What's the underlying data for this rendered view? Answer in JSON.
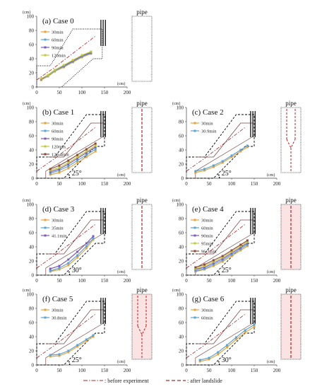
{
  "figure": {
    "footer": {
      "before_label": ": before experiment",
      "after_label": ": after landslide"
    }
  },
  "colors": {
    "dashed_black": "#000000",
    "dot_black": "#111111",
    "red_dash": "#a42a2a",
    "slope_outline": "#7a4848",
    "legend_colors": [
      "#e8a23c",
      "#5ba3d4",
      "#7c5bb5",
      "#c0c93a",
      "#8a4a3a"
    ],
    "pipe_fill": "#fbe3e3",
    "pipe_hole": "#b22222"
  },
  "chart_data": [
    {
      "type": "line",
      "title": "(a) Case 0",
      "pipe_label": "pipe",
      "unit_label": "(cm)",
      "xlim": [
        0,
        200
      ],
      "ylim": [
        0,
        100
      ],
      "x_ticks": [
        0,
        50,
        100,
        150,
        200
      ],
      "y_ticks": [
        0,
        20,
        40,
        60,
        80,
        100
      ],
      "angle_label": "",
      "series": [
        {
          "name": "30min",
          "x": [
            10,
            25,
            40,
            60,
            80,
            100,
            120
          ],
          "y": [
            10,
            15,
            22,
            28,
            35,
            42,
            47
          ]
        },
        {
          "name": "60min",
          "x": [
            10,
            25,
            40,
            60,
            80,
            100,
            120
          ],
          "y": [
            11,
            16,
            23,
            29,
            36,
            43,
            48
          ]
        },
        {
          "name": "90min",
          "x": [
            10,
            25,
            40,
            60,
            80,
            100,
            120
          ],
          "y": [
            11,
            17,
            24,
            30,
            37,
            44,
            49
          ]
        },
        {
          "name": "120min",
          "x": [
            10,
            25,
            40,
            60,
            80,
            100,
            120
          ],
          "y": [
            12,
            17,
            24,
            31,
            38,
            45,
            50
          ]
        }
      ]
    },
    {
      "type": "line",
      "title": "(b) Case 1",
      "pipe_label": "pipe",
      "unit_label": "(cm)",
      "xlim": [
        0,
        200
      ],
      "ylim": [
        0,
        100
      ],
      "x_ticks": [
        0,
        50,
        100,
        150,
        200
      ],
      "y_ticks": [
        0,
        20,
        40,
        60,
        80,
        100
      ],
      "angle_label": "25°",
      "series": [
        {
          "name": "30min",
          "x": [
            30,
            50,
            70,
            90,
            110,
            130
          ],
          "y": [
            5,
            8,
            14,
            22,
            30,
            38
          ]
        },
        {
          "name": "60min",
          "x": [
            30,
            50,
            70,
            90,
            110,
            130
          ],
          "y": [
            7,
            11,
            17,
            25,
            33,
            41
          ]
        },
        {
          "name": "90min",
          "x": [
            30,
            50,
            70,
            90,
            110,
            130
          ],
          "y": [
            9,
            13,
            20,
            28,
            36,
            44
          ]
        },
        {
          "name": "120min",
          "x": [
            30,
            50,
            70,
            90,
            110,
            130
          ],
          "y": [
            11,
            15,
            22,
            30,
            38,
            46
          ]
        },
        {
          "name": "120.4min",
          "x": [
            30,
            50,
            70,
            90,
            110,
            130
          ],
          "y": [
            13,
            18,
            25,
            33,
            41,
            49
          ]
        }
      ]
    },
    {
      "type": "line",
      "title": "(c) Case 2",
      "pipe_label": "pipe",
      "unit_label": "(cm)",
      "xlim": [
        0,
        200
      ],
      "ylim": [
        0,
        100
      ],
      "x_ticks": [
        0,
        50,
        100,
        150,
        200
      ],
      "y_ticks": [
        0,
        20,
        40,
        60,
        80,
        100
      ],
      "angle_label": "25°",
      "series": [
        {
          "name": "30min",
          "x": [
            20,
            40,
            60,
            80,
            100,
            120,
            135
          ],
          "y": [
            8,
            11,
            16,
            22,
            30,
            38,
            44
          ]
        },
        {
          "name": "30.9min",
          "x": [
            20,
            40,
            60,
            80,
            100,
            120,
            135
          ],
          "y": [
            10,
            13,
            18,
            24,
            32,
            40,
            46
          ]
        }
      ]
    },
    {
      "type": "line",
      "title": "(d) Case 3",
      "pipe_label": "pipe",
      "unit_label": "(cm)",
      "xlim": [
        0,
        200
      ],
      "ylim": [
        0,
        100
      ],
      "x_ticks": [
        0,
        50,
        100,
        150,
        200
      ],
      "y_ticks": [
        0,
        20,
        40,
        60,
        80,
        100
      ],
      "angle_label": "30°",
      "series": [
        {
          "name": "30min",
          "x": [
            30,
            50,
            70,
            90,
            110,
            125
          ],
          "y": [
            5,
            8,
            14,
            25,
            38,
            50
          ]
        },
        {
          "name": "35min",
          "x": [
            30,
            50,
            70,
            90,
            110,
            125
          ],
          "y": [
            6,
            10,
            17,
            28,
            41,
            52
          ]
        },
        {
          "name": "41.1min",
          "x": [
            30,
            50,
            70,
            90,
            110,
            125
          ],
          "y": [
            9,
            13,
            22,
            33,
            45,
            55
          ]
        }
      ]
    },
    {
      "type": "line",
      "title": "(e) Case 4",
      "pipe_label": "pipe",
      "unit_label": "(cm)",
      "xlim": [
        0,
        200
      ],
      "ylim": [
        0,
        100
      ],
      "x_ticks": [
        0,
        50,
        100,
        150,
        200
      ],
      "y_ticks": [
        0,
        20,
        40,
        60,
        80,
        100
      ],
      "angle_label": "25°",
      "series": [
        {
          "name": "30min",
          "x": [
            20,
            40,
            60,
            80,
            100,
            120,
            135
          ],
          "y": [
            5,
            8,
            13,
            19,
            27,
            35,
            41
          ]
        },
        {
          "name": "60min",
          "x": [
            20,
            40,
            60,
            80,
            100,
            120,
            135
          ],
          "y": [
            6,
            9,
            15,
            21,
            29,
            37,
            43
          ]
        },
        {
          "name": "90min",
          "x": [
            20,
            40,
            60,
            80,
            100,
            120,
            135
          ],
          "y": [
            8,
            11,
            17,
            23,
            31,
            39,
            45
          ]
        },
        {
          "name": "95min",
          "x": [
            20,
            40,
            60,
            80,
            100,
            120,
            135
          ],
          "y": [
            9,
            13,
            19,
            25,
            33,
            41,
            47
          ]
        },
        {
          "name": "96.7min",
          "x": [
            20,
            40,
            60,
            80,
            100,
            120,
            135
          ],
          "y": [
            11,
            15,
            21,
            27,
            35,
            43,
            49
          ]
        }
      ]
    },
    {
      "type": "line",
      "title": "(f) Case 5",
      "pipe_label": "pipe",
      "unit_label": "(cm)",
      "xlim": [
        0,
        200
      ],
      "ylim": [
        0,
        100
      ],
      "x_ticks": [
        0,
        50,
        100,
        150,
        200
      ],
      "y_ticks": [
        0,
        20,
        40,
        60,
        80,
        100
      ],
      "angle_label": "25°",
      "series": [
        {
          "name": "30min",
          "x": [
            30,
            50,
            70,
            90,
            110,
            125
          ],
          "y": [
            12,
            13,
            18,
            26,
            34,
            40
          ]
        },
        {
          "name": "30.8min",
          "x": [
            30,
            50,
            70,
            90,
            110,
            125
          ],
          "y": [
            14,
            15,
            20,
            28,
            36,
            42
          ]
        }
      ]
    },
    {
      "type": "line",
      "title": "(g) Case 6",
      "pipe_label": "pipe",
      "unit_label": "(cm)",
      "xlim": [
        0,
        200
      ],
      "ylim": [
        0,
        100
      ],
      "x_ticks": [
        0,
        50,
        100,
        150,
        200
      ],
      "y_ticks": [
        0,
        20,
        40,
        60,
        80,
        100
      ],
      "angle_label": "30°",
      "series": [
        {
          "name": "30min",
          "x": [
            30,
            50,
            70,
            90,
            110,
            130,
            150
          ],
          "y": [
            5,
            8,
            15,
            25,
            36,
            46,
            54
          ]
        },
        {
          "name": "60min",
          "x": [
            30,
            50,
            70,
            90,
            110,
            130,
            150
          ],
          "y": [
            7,
            10,
            18,
            28,
            39,
            49,
            57
          ]
        }
      ]
    }
  ]
}
